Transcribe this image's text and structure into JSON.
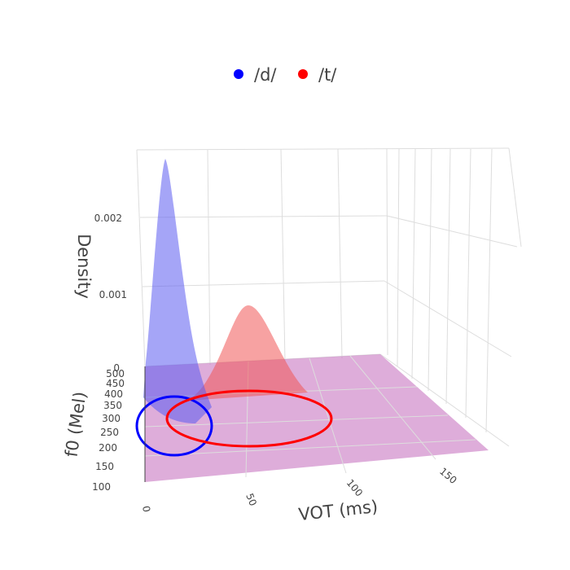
{
  "chart_data": {
    "type": "surface3d",
    "legend": {
      "placement": "top-center",
      "entries": [
        {
          "name": "/d/",
          "color": "#0000ff"
        },
        {
          "name": "/t/",
          "color": "#ff0000"
        }
      ]
    },
    "axes": {
      "x": {
        "title": "VOT (ms)",
        "ticks": [
          0,
          50,
          100,
          150
        ],
        "range": [
          0,
          180
        ]
      },
      "y": {
        "title": "f0 (Mel)",
        "ticks": [
          100,
          150,
          200,
          250,
          300,
          350,
          400,
          450,
          500
        ],
        "range": [
          100,
          500
        ]
      },
      "z": {
        "title": "Density",
        "ticks": [
          0,
          0.001,
          0.002
        ],
        "tick_labels": [
          "0",
          "0.001",
          "0.002"
        ],
        "range": [
          0,
          0.0027
        ]
      }
    },
    "series": [
      {
        "name": "/d/",
        "color": "#0000ff",
        "peak_vot": 8,
        "peak_density": 0.0027
      },
      {
        "name": "/t/",
        "color": "#ff0000",
        "peak_vot": 55,
        "peak_density": 0.00085
      }
    ],
    "ellipses": [
      {
        "name": "/d/",
        "color": "#0000ff"
      },
      {
        "name": "/t/",
        "color": "#ff0000"
      }
    ],
    "base_plane": {
      "color": "#c97bc4"
    }
  }
}
